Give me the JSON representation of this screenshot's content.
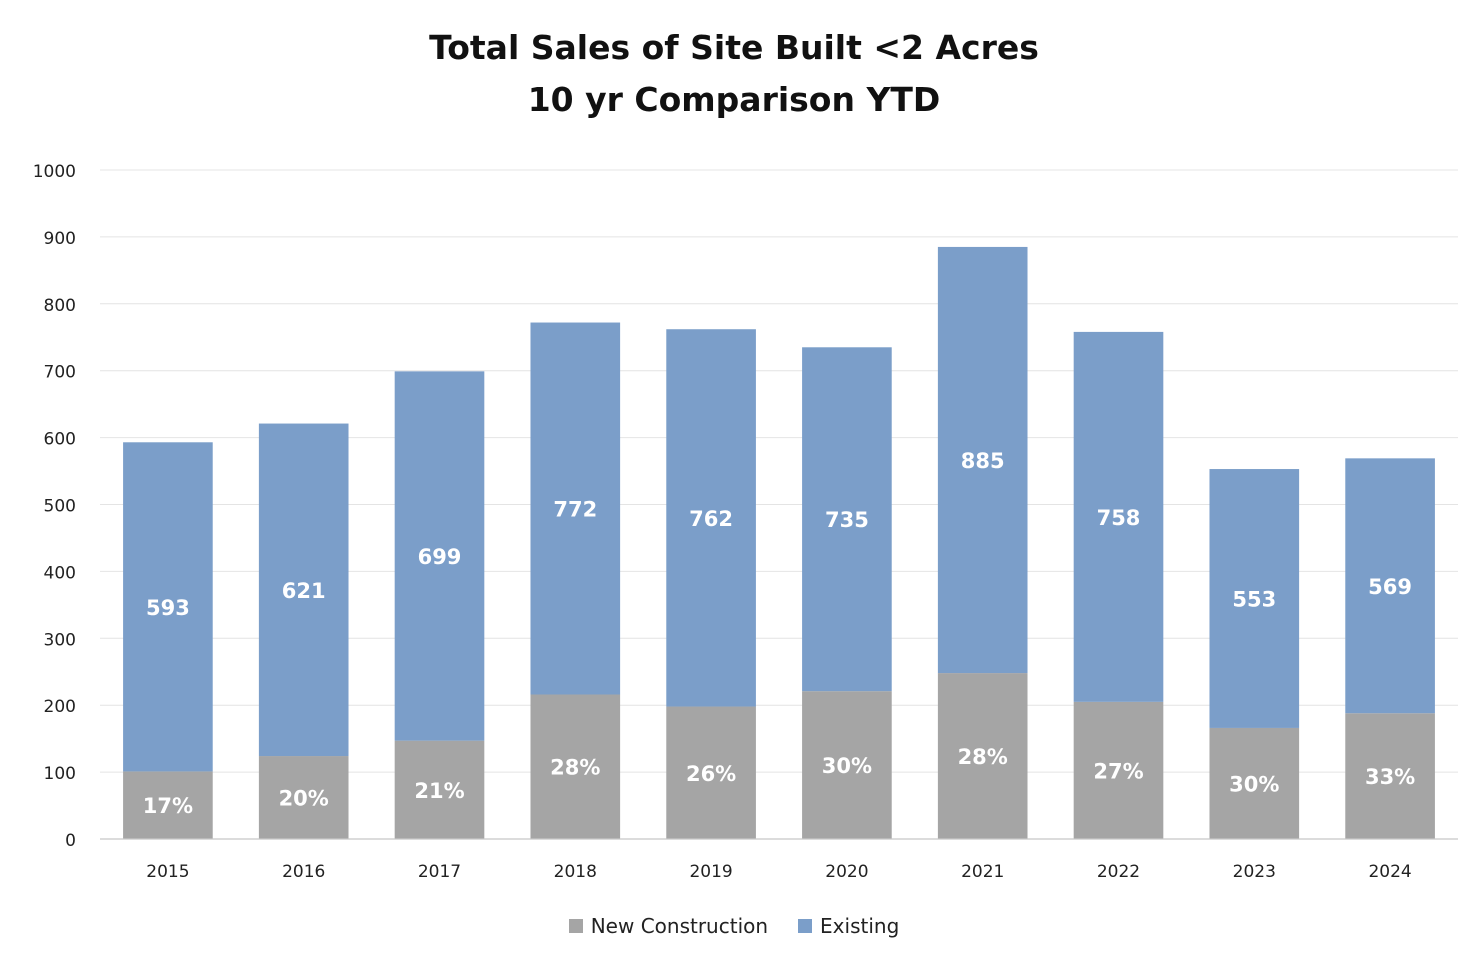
{
  "chart_data": {
    "type": "bar",
    "stacked": true,
    "title": "Total Sales of Site Built <2 Acres",
    "subtitle": "10 yr Comparison YTD",
    "categories": [
      "2015",
      "2016",
      "2017",
      "2018",
      "2019",
      "2020",
      "2021",
      "2022",
      "2023",
      "2024"
    ],
    "series": [
      {
        "name": "New Construction",
        "color": "#a5a5a5",
        "values": [
          101,
          124,
          147,
          216,
          198,
          221,
          248,
          205,
          166,
          188
        ],
        "labels": [
          "17%",
          "20%",
          "21%",
          "28%",
          "26%",
          "30%",
          "28%",
          "27%",
          "30%",
          "33%"
        ]
      },
      {
        "name": "Existing",
        "color": "#7b9ec9",
        "values": [
          492,
          497,
          552,
          556,
          564,
          514,
          637,
          553,
          387,
          381
        ],
        "labels": [
          "593",
          "621",
          "699",
          "772",
          "762",
          "735",
          "885",
          "758",
          "553",
          "569"
        ]
      }
    ],
    "totals": [
      593,
      621,
      699,
      772,
      762,
      735,
      885,
      758,
      553,
      569
    ],
    "ylim": [
      0,
      1000
    ],
    "yticks": [
      "0",
      "100",
      "200",
      "300",
      "400",
      "500",
      "600",
      "700",
      "800",
      "900",
      "1000"
    ],
    "grid": true,
    "legend": "bottom",
    "xlabel": "",
    "ylabel": ""
  }
}
